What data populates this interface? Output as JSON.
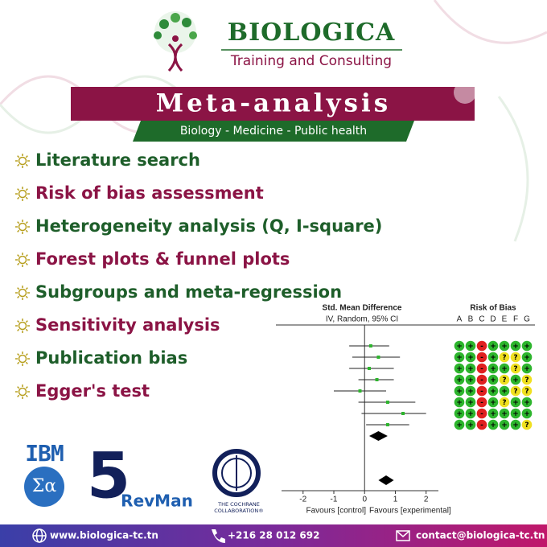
{
  "header": {
    "brand": "BIOLOGICA",
    "tagline": "Training and Consulting"
  },
  "banner": {
    "title": "Meta-analysis",
    "subtitle": "Biology - Medicine - Public health"
  },
  "services": [
    "Literature search",
    "Risk of bias assessment",
    "Heterogeneity analysis (Q, I-square)",
    "Forest plots & funnel plots",
    "Subgroups and meta-regression",
    "Sensitivity analysis",
    "Publication bias",
    "Egger's test"
  ],
  "forest_plot": {
    "effect_title": "Std. Mean Difference",
    "method": "IV, Random, 95% CI",
    "bias_title": "Risk of Bias",
    "bias_domains": [
      "A",
      "B",
      "C",
      "D",
      "E",
      "F",
      "G"
    ],
    "studies": [
      {
        "estimate": 0.2,
        "ci": [
          -0.5,
          0.8
        ]
      },
      {
        "estimate": 0.45,
        "ci": [
          -0.4,
          1.15
        ]
      },
      {
        "estimate": 0.15,
        "ci": [
          -0.5,
          0.95
        ]
      },
      {
        "estimate": 0.4,
        "ci": [
          -0.2,
          0.95
        ]
      },
      {
        "estimate": -0.15,
        "ci": [
          -1.0,
          0.7
        ]
      },
      {
        "estimate": 0.75,
        "ci": [
          -0.2,
          1.65
        ]
      },
      {
        "estimate": 1.25,
        "ci": [
          -0.1,
          2.0
        ]
      },
      {
        "estimate": 0.75,
        "ci": [
          0.05,
          1.45
        ]
      }
    ],
    "pooled": [
      {
        "estimate": 0.45,
        "ci": [
          0.15,
          0.75
        ]
      },
      {
        "estimate": 0.7,
        "ci": [
          0.45,
          0.95
        ]
      }
    ],
    "bias": [
      "++-++++",
      "++-+??+",
      "++-++?+",
      "++-+?+?",
      "++-++??",
      "++-+?++",
      "++-++++",
      "++-+++?"
    ],
    "xlim": [
      -2.7,
      2.4
    ],
    "xticks": [
      -2,
      -1,
      0,
      1,
      2
    ],
    "left_label": "Favours [control]",
    "right_label": "Favours [experimental]"
  },
  "logos": {
    "ibm": "IBM",
    "revman_digit": "5",
    "revman": "RevMan",
    "cochrane": [
      "THE COCHRANE",
      "COLLABORATION®"
    ]
  },
  "footer": {
    "website": "www.biologica-tc.tn",
    "phone": "+216 28 012 692",
    "email": "contact@biologica-tc.tn"
  }
}
